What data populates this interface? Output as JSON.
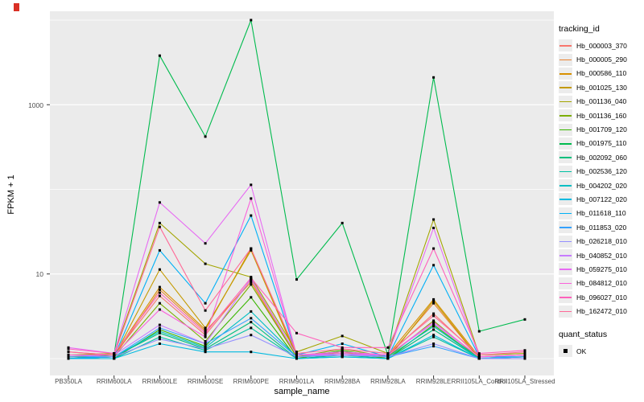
{
  "window": {
    "marker_color": "#d93025"
  },
  "chart_data": {
    "type": "line",
    "title": "",
    "xlabel": "sample_name",
    "ylabel": "FPKM + 1",
    "y_scale": "log10",
    "ylim": [
      0.63,
      12700
    ],
    "grid": "on",
    "gridline_values": [
      1,
      10,
      100,
      1000,
      10000
    ],
    "major_gridline_values": [
      10,
      1000
    ],
    "y_ticks": [
      {
        "label": "1000",
        "value": 1000
      },
      {
        "label": "10",
        "value": 10
      }
    ],
    "marker": "black-square",
    "panel_bg": "#ebebeb",
    "categories": [
      "PB350LA",
      "RRIM600LA",
      "RRIM600LE",
      "RRIM600SE",
      "RRIM600PE",
      "RRIM901LA",
      "RRIM928BA",
      "RRIM928LA",
      "RRIM928LE",
      "RRII105LA_Control",
      "RRII105LA_Stressed"
    ],
    "series": [
      {
        "name": "Hb_000003_370",
        "color": "#F8766D",
        "values": [
          1.2,
          1.1,
          5.5,
          1.9,
          8.5,
          1.1,
          1.2,
          1.1,
          3.4,
          1.05,
          1.1
        ]
      },
      {
        "name": "Hb_000005_290",
        "color": "#EA8331",
        "values": [
          1.0,
          1.05,
          6.5,
          2.1,
          8.0,
          1.05,
          1.1,
          1.05,
          4.5,
          1.0,
          1.05
        ]
      },
      {
        "name": "Hb_000586_110",
        "color": "#D89000",
        "values": [
          1.05,
          1.1,
          7.0,
          2.2,
          20,
          1.1,
          1.15,
          1.1,
          5.0,
          1.05,
          1.1
        ]
      },
      {
        "name": "Hb_001025_130",
        "color": "#C49A00",
        "values": [
          1.0,
          1.05,
          11.3,
          2.3,
          19,
          1.05,
          1.2,
          1.0,
          4.8,
          1.0,
          1.0
        ]
      },
      {
        "name": "Hb_001136_040",
        "color": "#A3A500",
        "values": [
          1.1,
          1.15,
          40,
          13.2,
          9.2,
          1.2,
          1.85,
          1.15,
          44,
          1.1,
          1.15
        ]
      },
      {
        "name": "Hb_001136_160",
        "color": "#7CAE00",
        "values": [
          1.0,
          1.05,
          4.5,
          1.6,
          7.5,
          1.05,
          1.3,
          1.05,
          2.8,
          1.0,
          1.05
        ]
      },
      {
        "name": "Hb_001709_120",
        "color": "#39B600",
        "values": [
          1.0,
          1.0,
          2.2,
          1.4,
          5.3,
          1.0,
          1.25,
          1.0,
          2.5,
          1.0,
          1.0
        ]
      },
      {
        "name": "Hb_001975_110",
        "color": "#00BB4E",
        "values": [
          1.0,
          1.1,
          3800,
          420,
          10000,
          8.6,
          40,
          1.1,
          2100,
          2.1,
          2.9
        ]
      },
      {
        "name": "Hb_002092_060",
        "color": "#00BF7D",
        "values": [
          1.0,
          1.05,
          2.0,
          1.3,
          2.7,
          1.0,
          1.1,
          1.0,
          2.2,
          1.0,
          1.0
        ]
      },
      {
        "name": "Hb_002536_120",
        "color": "#00C1A3",
        "values": [
          1.0,
          1.0,
          1.8,
          1.25,
          2.3,
          1.0,
          1.05,
          1.0,
          1.8,
          1.0,
          1.0
        ]
      },
      {
        "name": "Hb_004202_020",
        "color": "#00BFC4",
        "values": [
          1.0,
          1.05,
          2.1,
          1.35,
          3.6,
          1.05,
          1.1,
          1.05,
          2.4,
          1.0,
          1.05
        ]
      },
      {
        "name": "Hb_007122_020",
        "color": "#00BAE0",
        "values": [
          1.0,
          1.0,
          1.5,
          1.2,
          1.2,
          1.0,
          1.05,
          1.0,
          1.9,
          1.0,
          1.0
        ]
      },
      {
        "name": "Hb_011618_110",
        "color": "#00B0F6",
        "values": [
          1.0,
          1.05,
          19,
          4.5,
          49,
          1.1,
          1.5,
          1.05,
          12.7,
          1.05,
          1.05
        ]
      },
      {
        "name": "Hb_011853_020",
        "color": "#35A2FF",
        "values": [
          1.05,
          1.05,
          2.3,
          1.5,
          3.0,
          1.05,
          1.15,
          1.05,
          1.4,
          1.0,
          1.05
        ]
      },
      {
        "name": "Hb_026218_010",
        "color": "#9590FF",
        "values": [
          1.1,
          1.05,
          1.7,
          1.3,
          1.9,
          1.05,
          1.1,
          1.05,
          1.5,
          1.0,
          1.0
        ]
      },
      {
        "name": "Hb_040852_010",
        "color": "#C77CFF",
        "values": [
          1.1,
          1.1,
          2.5,
          1.5,
          8.8,
          1.1,
          1.1,
          1.1,
          2.6,
          1.05,
          1.1
        ]
      },
      {
        "name": "Hb_059275_010",
        "color": "#E76BF3",
        "values": [
          1.35,
          1.15,
          70,
          23,
          113,
          1.1,
          1.2,
          1.1,
          35,
          1.05,
          1.1
        ]
      },
      {
        "name": "Hb_084812_010",
        "color": "#FA62DB",
        "values": [
          1.1,
          1.1,
          3.8,
          1.8,
          78,
          1.1,
          1.15,
          1.1,
          2.7,
          1.05,
          1.1
        ]
      },
      {
        "name": "Hb_096027_010",
        "color": "#FF62BC",
        "values": [
          1.3,
          1.15,
          6.0,
          2.0,
          9.0,
          2.0,
          1.35,
          1.35,
          20,
          1.15,
          1.25
        ]
      },
      {
        "name": "Hb_162472_010",
        "color": "#FF6A98",
        "values": [
          1.2,
          1.1,
          36,
          3.7,
          20,
          1.15,
          1.3,
          1.15,
          3.2,
          1.1,
          1.2
        ]
      }
    ],
    "legend": {
      "tracking_title": "tracking_id",
      "quant_title": "quant_status",
      "quant_entries": [
        {
          "label": "OK"
        }
      ]
    }
  }
}
